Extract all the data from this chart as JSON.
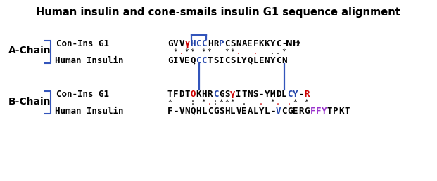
{
  "title": "Human insulin and cone-smails insulin G1 sequence alignment",
  "title_fontsize": 10.5,
  "bg_color": "#ffffff",
  "a_chain_label": "A-Chain",
  "b_chain_label": "B-Chain",
  "con_label": "Con-Ins G1",
  "human_label": "Human Insulin",
  "a_con_seq": [
    {
      "char": "G",
      "color": "#000000"
    },
    {
      "char": "V",
      "color": "#000000"
    },
    {
      "char": "V",
      "color": "#000000"
    },
    {
      "char": "γ",
      "color": "#cc0000"
    },
    {
      "char": "H",
      "color": "#2244aa"
    },
    {
      "char": "C",
      "color": "#2244aa"
    },
    {
      "char": "C",
      "color": "#2244aa"
    },
    {
      "char": "H",
      "color": "#000000"
    },
    {
      "char": "R",
      "color": "#000000"
    },
    {
      "char": "P",
      "color": "#2244aa"
    },
    {
      "char": "C",
      "color": "#000000"
    },
    {
      "char": "S",
      "color": "#000000"
    },
    {
      "char": "N",
      "color": "#000000"
    },
    {
      "char": "A",
      "color": "#000000"
    },
    {
      "char": "E",
      "color": "#000000"
    },
    {
      "char": "F",
      "color": "#000000"
    },
    {
      "char": "K",
      "color": "#000000"
    },
    {
      "char": "K",
      "color": "#000000"
    },
    {
      "char": "Y",
      "color": "#000000"
    },
    {
      "char": "C",
      "color": "#000000"
    }
  ],
  "a_human_seq": [
    {
      "char": "G",
      "color": "#000000"
    },
    {
      "char": "I",
      "color": "#000000"
    },
    {
      "char": "V",
      "color": "#000000"
    },
    {
      "char": "E",
      "color": "#000000"
    },
    {
      "char": "Q",
      "color": "#000000"
    },
    {
      "char": "C",
      "color": "#2244aa"
    },
    {
      "char": "C",
      "color": "#2244aa"
    },
    {
      "char": "T",
      "color": "#000000"
    },
    {
      "char": "S",
      "color": "#000000"
    },
    {
      "char": "I",
      "color": "#000000"
    },
    {
      "char": "C",
      "color": "#000000"
    },
    {
      "char": "S",
      "color": "#000000"
    },
    {
      "char": "L",
      "color": "#000000"
    },
    {
      "char": "Y",
      "color": "#000000"
    },
    {
      "char": "Q",
      "color": "#000000"
    },
    {
      "char": "L",
      "color": "#000000"
    },
    {
      "char": "E",
      "color": "#000000"
    },
    {
      "char": "N",
      "color": "#000000"
    },
    {
      "char": "Y",
      "color": "#000000"
    },
    {
      "char": "C",
      "color": "#000000"
    },
    {
      "char": "N",
      "color": "#000000"
    }
  ],
  "a_dots": [
    " ",
    "*",
    ";",
    "*",
    "*",
    " ",
    "*",
    "*",
    " ",
    " ",
    "*",
    "*",
    ";",
    " ",
    " ",
    ";",
    " ",
    " ",
    ".",
    ".",
    "*"
  ],
  "b_con_seq": [
    {
      "char": "T",
      "color": "#000000"
    },
    {
      "char": "F",
      "color": "#000000"
    },
    {
      "char": "D",
      "color": "#000000"
    },
    {
      "char": "T",
      "color": "#000000"
    },
    {
      "char": "O",
      "color": "#cc0000"
    },
    {
      "char": "K",
      "color": "#000000"
    },
    {
      "char": "H",
      "color": "#000000"
    },
    {
      "char": "R",
      "color": "#000000"
    },
    {
      "char": "C",
      "color": "#2244aa"
    },
    {
      "char": "G",
      "color": "#000000"
    },
    {
      "char": "S",
      "color": "#000000"
    },
    {
      "char": "γ",
      "color": "#cc0000"
    },
    {
      "char": "I",
      "color": "#000000"
    },
    {
      "char": "T",
      "color": "#000000"
    },
    {
      "char": "N",
      "color": "#000000"
    },
    {
      "char": "S",
      "color": "#000000"
    },
    {
      "char": "-",
      "color": "#000000"
    },
    {
      "char": "Y",
      "color": "#000000"
    },
    {
      "char": "M",
      "color": "#000000"
    },
    {
      "char": "D",
      "color": "#000000"
    },
    {
      "char": "L",
      "color": "#000000"
    },
    {
      "char": "C",
      "color": "#2244aa"
    },
    {
      "char": "Y",
      "color": "#2244aa"
    },
    {
      "char": "-",
      "color": "#000000"
    },
    {
      "char": "R",
      "color": "#cc0000"
    }
  ],
  "b_human_seq": [
    {
      "char": "F",
      "color": "#000000"
    },
    {
      "char": "-",
      "color": "#000000"
    },
    {
      "char": "V",
      "color": "#000000"
    },
    {
      "char": "N",
      "color": "#000000"
    },
    {
      "char": "Q",
      "color": "#000000"
    },
    {
      "char": "H",
      "color": "#000000"
    },
    {
      "char": "L",
      "color": "#000000"
    },
    {
      "char": "C",
      "color": "#000000"
    },
    {
      "char": "G",
      "color": "#000000"
    },
    {
      "char": "S",
      "color": "#000000"
    },
    {
      "char": "H",
      "color": "#000000"
    },
    {
      "char": "L",
      "color": "#000000"
    },
    {
      "char": "V",
      "color": "#000000"
    },
    {
      "char": "E",
      "color": "#000000"
    },
    {
      "char": "A",
      "color": "#000000"
    },
    {
      "char": "L",
      "color": "#000000"
    },
    {
      "char": "Y",
      "color": "#000000"
    },
    {
      "char": "L",
      "color": "#000000"
    },
    {
      "char": "-",
      "color": "#000000"
    },
    {
      "char": "V",
      "color": "#2244aa"
    },
    {
      "char": "C",
      "color": "#000000"
    },
    {
      "char": "G",
      "color": "#000000"
    },
    {
      "char": "E",
      "color": "#000000"
    },
    {
      "char": "R",
      "color": "#000000"
    },
    {
      "char": "G",
      "color": "#000000"
    },
    {
      "char": "F",
      "color": "#9933cc"
    },
    {
      "char": "F",
      "color": "#9933cc"
    },
    {
      "char": "Y",
      "color": "#9933cc"
    },
    {
      "char": "T",
      "color": "#000000"
    },
    {
      "char": "P",
      "color": "#000000"
    },
    {
      "char": "K",
      "color": "#000000"
    },
    {
      "char": "T",
      "color": "#000000"
    }
  ],
  "b_dots": [
    "*",
    " ",
    " ",
    " ",
    ":",
    " ",
    "*",
    ";",
    ":",
    "*",
    "*",
    "*",
    " ",
    ".",
    " ",
    " ",
    ";",
    " ",
    "*",
    ";",
    " ",
    ";",
    "*",
    " ",
    "*"
  ],
  "bracket_color": "#3355bb",
  "vline_color": "#3355bb",
  "box_color": "#3355bb",
  "seq_fontsize": 9,
  "label_fontsize": 9,
  "chain_fontsize": 10,
  "dot_fontsize": 7
}
